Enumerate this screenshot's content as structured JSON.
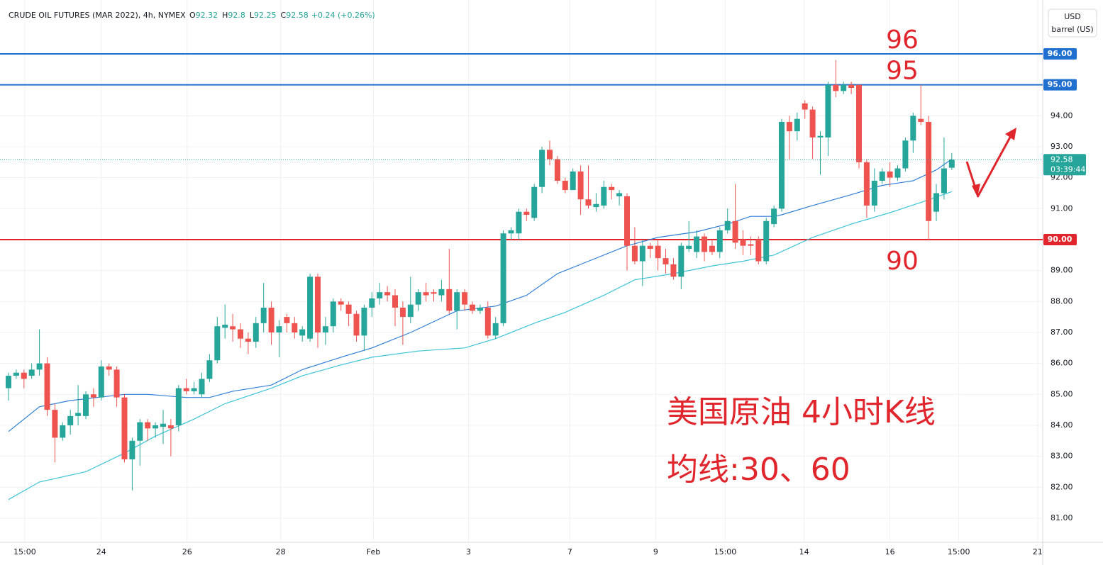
{
  "chart_data": {
    "type": "candlestick",
    "header": {
      "symbol": "CRUDE OIL FUTURES (MAR 2022), 4h, NYMEX",
      "ohlc": [
        {
          "label": "O",
          "value": 92.32
        },
        {
          "label": "H",
          "value": 92.8
        },
        {
          "label": "L",
          "value": 92.25
        },
        {
          "label": "C",
          "value": 92.58
        }
      ],
      "change": "+0.24 (+0.26%)"
    },
    "currency": "USD",
    "unit": "barrel (US)",
    "up_color": "#26a69a",
    "down_color": "#ef5350",
    "candles": [
      {
        "o": 85.2,
        "h": 85.7,
        "l": 84.8,
        "c": 85.6
      },
      {
        "o": 85.6,
        "h": 85.8,
        "l": 85.5,
        "c": 85.7
      },
      {
        "o": 85.7,
        "h": 85.8,
        "l": 85.2,
        "c": 85.5
      },
      {
        "o": 85.6,
        "h": 86.0,
        "l": 85.5,
        "c": 85.8
      },
      {
        "o": 85.8,
        "h": 87.1,
        "l": 85.6,
        "c": 86.0
      },
      {
        "o": 86.0,
        "h": 86.2,
        "l": 84.3,
        "c": 84.5
      },
      {
        "o": 84.5,
        "h": 84.7,
        "l": 82.8,
        "c": 83.6
      },
      {
        "o": 83.6,
        "h": 84.1,
        "l": 83.5,
        "c": 84.0
      },
      {
        "o": 84.0,
        "h": 84.5,
        "l": 83.7,
        "c": 84.3
      },
      {
        "o": 84.3,
        "h": 85.3,
        "l": 84.0,
        "c": 84.4
      },
      {
        "o": 84.3,
        "h": 85.1,
        "l": 84.2,
        "c": 85.0
      },
      {
        "o": 85.0,
        "h": 85.2,
        "l": 84.6,
        "c": 84.9
      },
      {
        "o": 84.9,
        "h": 86.1,
        "l": 84.8,
        "c": 85.9
      },
      {
        "o": 85.9,
        "h": 86.0,
        "l": 85.6,
        "c": 85.8
      },
      {
        "o": 85.8,
        "h": 85.9,
        "l": 84.6,
        "c": 84.9
      },
      {
        "o": 84.9,
        "h": 85.0,
        "l": 82.8,
        "c": 82.9
      },
      {
        "o": 82.9,
        "h": 83.6,
        "l": 81.9,
        "c": 83.5
      },
      {
        "o": 83.5,
        "h": 84.2,
        "l": 82.7,
        "c": 84.1
      },
      {
        "o": 84.1,
        "h": 84.2,
        "l": 83.5,
        "c": 83.9
      },
      {
        "o": 83.9,
        "h": 84.1,
        "l": 83.6,
        "c": 84.0
      },
      {
        "o": 83.95,
        "h": 84.5,
        "l": 83.4,
        "c": 84.05
      },
      {
        "o": 84.0,
        "h": 84.2,
        "l": 83.0,
        "c": 83.9
      },
      {
        "o": 84.0,
        "h": 85.3,
        "l": 83.8,
        "c": 85.2
      },
      {
        "o": 85.2,
        "h": 85.5,
        "l": 85.0,
        "c": 85.1
      },
      {
        "o": 85.1,
        "h": 85.4,
        "l": 85.0,
        "c": 85.2
      },
      {
        "o": 85.0,
        "h": 85.7,
        "l": 84.9,
        "c": 85.5
      },
      {
        "o": 85.5,
        "h": 86.3,
        "l": 85.4,
        "c": 86.1
      },
      {
        "o": 86.1,
        "h": 87.5,
        "l": 86.0,
        "c": 87.2
      },
      {
        "o": 87.15,
        "h": 87.9,
        "l": 86.8,
        "c": 87.25
      },
      {
        "o": 87.2,
        "h": 87.6,
        "l": 86.7,
        "c": 87.1
      },
      {
        "o": 87.1,
        "h": 87.3,
        "l": 86.5,
        "c": 86.8
      },
      {
        "o": 86.8,
        "h": 87.0,
        "l": 86.3,
        "c": 86.7
      },
      {
        "o": 86.7,
        "h": 87.5,
        "l": 86.5,
        "c": 87.3
      },
      {
        "o": 87.3,
        "h": 88.6,
        "l": 87.0,
        "c": 87.8
      },
      {
        "o": 87.8,
        "h": 88.0,
        "l": 86.6,
        "c": 87.0
      },
      {
        "o": 87.0,
        "h": 87.4,
        "l": 86.2,
        "c": 87.2
      },
      {
        "o": 87.5,
        "h": 87.6,
        "l": 87.0,
        "c": 87.3
      },
      {
        "o": 87.3,
        "h": 87.5,
        "l": 86.8,
        "c": 87.0
      },
      {
        "o": 86.9,
        "h": 87.2,
        "l": 86.7,
        "c": 87.1
      },
      {
        "o": 86.8,
        "h": 88.9,
        "l": 86.7,
        "c": 88.8
      },
      {
        "o": 88.8,
        "h": 88.9,
        "l": 86.5,
        "c": 87.0
      },
      {
        "o": 87.0,
        "h": 87.5,
        "l": 86.6,
        "c": 87.2
      },
      {
        "o": 87.2,
        "h": 88.1,
        "l": 87.0,
        "c": 88.0
      },
      {
        "o": 88.0,
        "h": 88.1,
        "l": 87.7,
        "c": 87.9
      },
      {
        "o": 87.9,
        "h": 88.0,
        "l": 87.2,
        "c": 87.6
      },
      {
        "o": 87.6,
        "h": 87.7,
        "l": 86.7,
        "c": 86.9
      },
      {
        "o": 86.9,
        "h": 87.9,
        "l": 86.4,
        "c": 87.8
      },
      {
        "o": 87.8,
        "h": 88.3,
        "l": 87.5,
        "c": 88.1
      },
      {
        "o": 88.1,
        "h": 88.6,
        "l": 87.9,
        "c": 88.3
      },
      {
        "o": 88.3,
        "h": 88.5,
        "l": 88.0,
        "c": 88.2
      },
      {
        "o": 88.2,
        "h": 88.4,
        "l": 87.2,
        "c": 87.8
      },
      {
        "o": 87.8,
        "h": 88.0,
        "l": 86.6,
        "c": 87.5
      },
      {
        "o": 87.5,
        "h": 88.8,
        "l": 87.3,
        "c": 87.9
      },
      {
        "o": 87.9,
        "h": 88.4,
        "l": 87.7,
        "c": 88.3
      },
      {
        "o": 88.3,
        "h": 88.6,
        "l": 88.0,
        "c": 88.2
      },
      {
        "o": 88.3,
        "h": 88.4,
        "l": 88.0,
        "c": 88.25
      },
      {
        "o": 88.2,
        "h": 88.7,
        "l": 88.0,
        "c": 88.4
      },
      {
        "o": 88.4,
        "h": 89.7,
        "l": 87.6,
        "c": 87.7
      },
      {
        "o": 87.7,
        "h": 88.4,
        "l": 87.1,
        "c": 88.3
      },
      {
        "o": 88.3,
        "h": 88.4,
        "l": 87.7,
        "c": 87.9
      },
      {
        "o": 87.9,
        "h": 88.0,
        "l": 87.6,
        "c": 87.7
      },
      {
        "o": 87.7,
        "h": 87.9,
        "l": 87.6,
        "c": 87.8
      },
      {
        "o": 87.8,
        "h": 88.0,
        "l": 86.8,
        "c": 86.9
      },
      {
        "o": 86.9,
        "h": 87.5,
        "l": 86.8,
        "c": 87.3
      },
      {
        "o": 87.3,
        "h": 90.3,
        "l": 87.2,
        "c": 90.2
      },
      {
        "o": 90.2,
        "h": 90.4,
        "l": 90.0,
        "c": 90.3
      },
      {
        "o": 90.2,
        "h": 91.0,
        "l": 90.0,
        "c": 90.9
      },
      {
        "o": 90.9,
        "h": 91.0,
        "l": 90.6,
        "c": 90.8
      },
      {
        "o": 90.7,
        "h": 91.8,
        "l": 90.6,
        "c": 91.7
      },
      {
        "o": 91.7,
        "h": 93.0,
        "l": 91.5,
        "c": 92.9
      },
      {
        "o": 92.9,
        "h": 93.2,
        "l": 92.4,
        "c": 92.6
      },
      {
        "o": 92.6,
        "h": 92.7,
        "l": 91.8,
        "c": 91.9
      },
      {
        "o": 91.9,
        "h": 92.0,
        "l": 91.5,
        "c": 91.6
      },
      {
        "o": 91.6,
        "h": 92.3,
        "l": 91.6,
        "c": 92.2
      },
      {
        "o": 92.2,
        "h": 92.4,
        "l": 90.8,
        "c": 91.3
      },
      {
        "o": 91.3,
        "h": 92.4,
        "l": 91.0,
        "c": 91.1
      },
      {
        "o": 91.05,
        "h": 91.5,
        "l": 90.9,
        "c": 91.15
      },
      {
        "o": 91.1,
        "h": 91.9,
        "l": 91.0,
        "c": 91.7
      },
      {
        "o": 91.7,
        "h": 91.8,
        "l": 91.3,
        "c": 91.6
      },
      {
        "o": 91.4,
        "h": 91.6,
        "l": 91.1,
        "c": 91.5
      },
      {
        "o": 91.4,
        "h": 91.5,
        "l": 89.0,
        "c": 89.8
      },
      {
        "o": 89.8,
        "h": 90.4,
        "l": 89.2,
        "c": 89.3
      },
      {
        "o": 89.3,
        "h": 90.0,
        "l": 88.5,
        "c": 89.8
      },
      {
        "o": 89.8,
        "h": 89.9,
        "l": 89.4,
        "c": 89.7
      },
      {
        "o": 89.8,
        "h": 90.0,
        "l": 89.0,
        "c": 89.4
      },
      {
        "o": 89.4,
        "h": 89.7,
        "l": 88.9,
        "c": 89.2
      },
      {
        "o": 89.2,
        "h": 89.4,
        "l": 88.7,
        "c": 88.8
      },
      {
        "o": 88.8,
        "h": 89.9,
        "l": 88.4,
        "c": 89.8
      },
      {
        "o": 89.7,
        "h": 90.6,
        "l": 89.6,
        "c": 89.8
      },
      {
        "o": 89.6,
        "h": 90.3,
        "l": 89.4,
        "c": 90.1
      },
      {
        "o": 90.1,
        "h": 90.2,
        "l": 89.3,
        "c": 89.6
      },
      {
        "o": 89.8,
        "h": 90.0,
        "l": 89.5,
        "c": 89.6
      },
      {
        "o": 89.6,
        "h": 90.4,
        "l": 89.4,
        "c": 90.3
      },
      {
        "o": 90.3,
        "h": 91.0,
        "l": 90.2,
        "c": 90.6
      },
      {
        "o": 90.6,
        "h": 91.8,
        "l": 89.7,
        "c": 89.9
      },
      {
        "o": 90.0,
        "h": 90.3,
        "l": 89.5,
        "c": 89.8
      },
      {
        "o": 89.85,
        "h": 90.1,
        "l": 89.5,
        "c": 89.8
      },
      {
        "o": 90.0,
        "h": 90.1,
        "l": 89.2,
        "c": 89.3
      },
      {
        "o": 89.3,
        "h": 90.7,
        "l": 89.2,
        "c": 90.6
      },
      {
        "o": 90.5,
        "h": 91.1,
        "l": 90.4,
        "c": 91.0
      },
      {
        "o": 91.0,
        "h": 93.9,
        "l": 90.9,
        "c": 93.8
      },
      {
        "o": 93.8,
        "h": 94.0,
        "l": 92.6,
        "c": 93.5
      },
      {
        "o": 93.5,
        "h": 94.1,
        "l": 93.2,
        "c": 93.9
      },
      {
        "o": 94.4,
        "h": 94.5,
        "l": 93.9,
        "c": 94.2
      },
      {
        "o": 94.2,
        "h": 94.3,
        "l": 92.6,
        "c": 93.3
      },
      {
        "o": 93.3,
        "h": 93.5,
        "l": 92.1,
        "c": 93.35
      },
      {
        "o": 93.3,
        "h": 95.1,
        "l": 92.7,
        "c": 95.0
      },
      {
        "o": 95.0,
        "h": 95.8,
        "l": 94.6,
        "c": 94.8
      },
      {
        "o": 94.8,
        "h": 95.1,
        "l": 94.7,
        "c": 95.0
      },
      {
        "o": 95.0,
        "h": 95.1,
        "l": 94.7,
        "c": 94.9
      },
      {
        "o": 95.0,
        "h": 95.0,
        "l": 92.3,
        "c": 92.5
      },
      {
        "o": 92.5,
        "h": 92.6,
        "l": 90.7,
        "c": 91.1
      },
      {
        "o": 91.1,
        "h": 92.3,
        "l": 90.9,
        "c": 91.9
      },
      {
        "o": 91.9,
        "h": 92.3,
        "l": 91.8,
        "c": 92.2
      },
      {
        "o": 92.2,
        "h": 92.5,
        "l": 91.7,
        "c": 92.0
      },
      {
        "o": 92.0,
        "h": 92.4,
        "l": 91.9,
        "c": 92.3
      },
      {
        "o": 92.3,
        "h": 93.3,
        "l": 92.2,
        "c": 93.2
      },
      {
        "o": 93.2,
        "h": 94.1,
        "l": 92.8,
        "c": 94.0
      },
      {
        "o": 93.9,
        "h": 95.0,
        "l": 93.7,
        "c": 93.8
      },
      {
        "o": 93.8,
        "h": 94.0,
        "l": 90.0,
        "c": 90.6
      },
      {
        "o": 90.9,
        "h": 91.8,
        "l": 90.6,
        "c": 91.5
      },
      {
        "o": 91.5,
        "h": 93.3,
        "l": 91.3,
        "c": 92.3
      },
      {
        "o": 92.32,
        "h": 92.8,
        "l": 92.25,
        "c": 92.58
      }
    ],
    "series": [
      {
        "color": "#2f7fd8",
        "x": [
          0,
          4,
          8,
          15,
          18,
          23,
          26,
          29,
          34,
          38,
          43,
          47,
          52,
          58,
          63,
          67,
          71,
          75,
          80,
          84,
          89,
          93,
          96,
          99,
          100,
          104,
          109,
          113,
          117,
          120,
          122
        ],
        "values": [
          83.8,
          84.6,
          84.8,
          85.0,
          85.0,
          84.9,
          84.9,
          85.1,
          85.3,
          85.8,
          86.2,
          86.5,
          87.0,
          87.7,
          87.85,
          88.2,
          88.9,
          89.3,
          89.8,
          90.07,
          90.25,
          90.5,
          90.75,
          90.75,
          90.8,
          91.1,
          91.45,
          91.75,
          91.9,
          92.25,
          92.6
        ]
      },
      {
        "color": "#3cc4d8",
        "x": [
          0,
          4,
          10,
          15,
          19,
          24,
          28,
          34,
          38,
          43,
          47,
          53,
          59,
          63,
          68,
          72,
          77,
          81,
          86,
          91,
          95,
          99,
          104,
          109,
          114,
          118,
          122
        ],
        "values": [
          81.6,
          82.17,
          82.5,
          83.1,
          83.65,
          84.2,
          84.7,
          85.2,
          85.6,
          85.95,
          86.2,
          86.4,
          86.5,
          86.8,
          87.3,
          87.65,
          88.2,
          88.7,
          88.9,
          89.15,
          89.3,
          89.5,
          90.07,
          90.5,
          90.87,
          91.2,
          91.55
        ]
      }
    ],
    "hlines": [
      {
        "value": 96,
        "label": "96.00",
        "color": "#1e6fd0"
      },
      {
        "value": 95,
        "label": "95.00",
        "color": "#1e6fd0"
      },
      {
        "value": 90,
        "label": "90.00",
        "color": "#e0262c"
      }
    ],
    "last_price": {
      "value": 92.58,
      "label": "92.58",
      "countdown": "03:39:44",
      "color": "#26a69a"
    },
    "annotations": [
      {
        "text": "96",
        "value": 96
      },
      {
        "text": "95",
        "value": 95
      },
      {
        "text": "90",
        "value": 90
      }
    ],
    "notes": [
      "美国原油 4小时K线",
      "均线:30、60"
    ],
    "xlim": [
      -1.1,
      133.76
    ],
    "xticks": [
      {
        "value": 2.1,
        "label": "15:00"
      },
      {
        "value": 12,
        "label": "24"
      },
      {
        "value": 23.1,
        "label": "26"
      },
      {
        "value": 35.2,
        "label": "28"
      },
      {
        "value": 47.2,
        "label": "Feb"
      },
      {
        "value": 59.5,
        "label": "3"
      },
      {
        "value": 72.6,
        "label": "7"
      },
      {
        "value": 83.7,
        "label": "9"
      },
      {
        "value": 92.7,
        "label": "15:00"
      },
      {
        "value": 102.9,
        "label": "14"
      },
      {
        "value": 114,
        "label": "16"
      },
      {
        "value": 122.9,
        "label": "15:00"
      },
      {
        "value": 133.1,
        "label": "21"
      }
    ],
    "ylim": [
      80.22,
      97.74
    ],
    "yticks": [
      {
        "value": 81,
        "label": "81.00"
      },
      {
        "value": 82,
        "label": "82.00"
      },
      {
        "value": 83,
        "label": "83.00"
      },
      {
        "value": 84,
        "label": "84.00"
      },
      {
        "value": 85,
        "label": "85.00"
      },
      {
        "value": 86,
        "label": "86.00"
      },
      {
        "value": 87,
        "label": "87.00"
      },
      {
        "value": 88,
        "label": "88.00"
      },
      {
        "value": 89,
        "label": "89.00"
      },
      {
        "value": 91,
        "label": "91.00"
      },
      {
        "value": 92,
        "label": "92.00"
      },
      {
        "value": 93,
        "label": "93.00"
      },
      {
        "value": 94,
        "label": "94.00"
      }
    ],
    "grid": true
  }
}
